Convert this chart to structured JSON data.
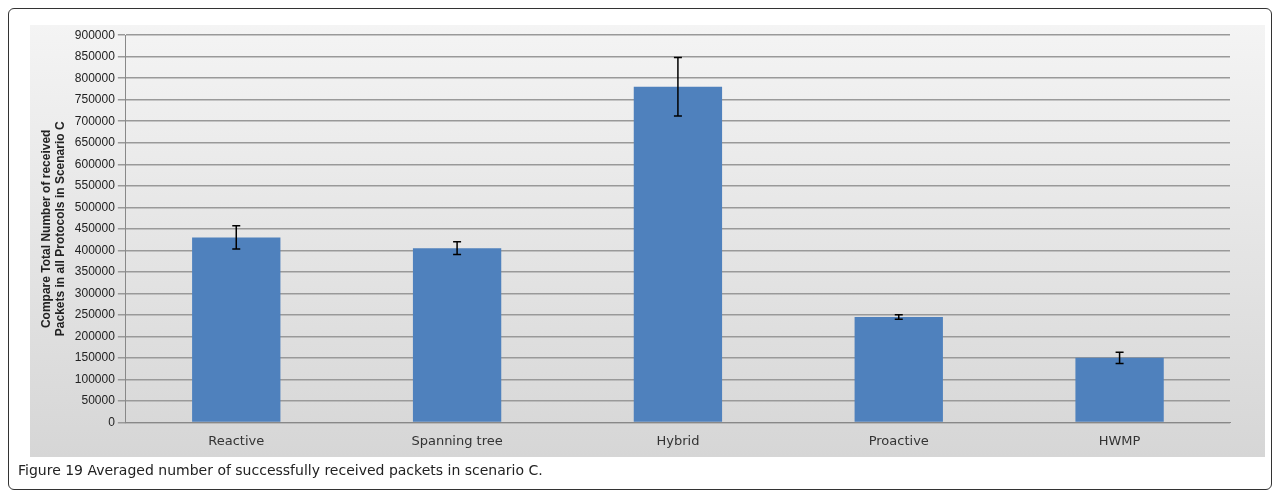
{
  "chart_data": {
    "type": "bar",
    "ylabel": "Compare Total Number of received Packets in all Protocols in Scenario C",
    "categories": [
      "Reactive",
      "Spanning tree",
      "Hybrid",
      "Proactive",
      "HWMP"
    ],
    "values": [
      430000,
      405000,
      780000,
      245000,
      150000
    ],
    "errors": [
      27000,
      15000,
      68000,
      5000,
      13000
    ],
    "color": "#4f81bd",
    "ylim": [
      0,
      900000
    ],
    "yticks": [
      0,
      50000,
      100000,
      150000,
      200000,
      250000,
      300000,
      350000,
      400000,
      450000,
      500000,
      550000,
      600000,
      650000,
      700000,
      750000,
      800000,
      850000,
      900000
    ],
    "grid": "y",
    "annotations": [
      "Figure 19 Averaged number of successfully received packets in scenario C."
    ]
  }
}
